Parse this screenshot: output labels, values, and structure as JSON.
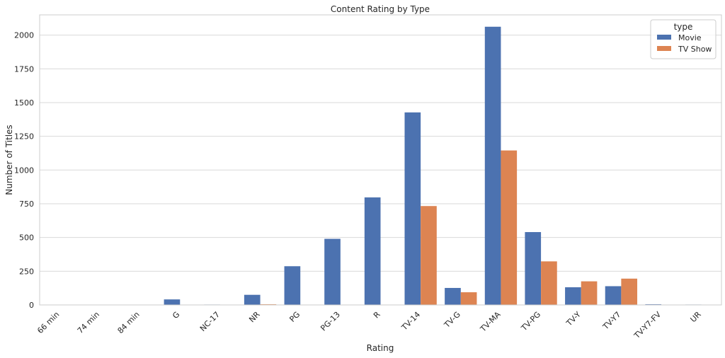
{
  "chart_data": {
    "type": "bar",
    "title": "Content Rating by Type",
    "xlabel": "Rating",
    "ylabel": "Number of Titles",
    "ylim": [
      0,
      2150
    ],
    "yticks": [
      0,
      250,
      500,
      750,
      1000,
      1250,
      1500,
      1750,
      2000
    ],
    "grid": "horizontal",
    "legend": {
      "title": "type",
      "placement": "top-right"
    },
    "categories": [
      "66 min",
      "74 min",
      "84 min",
      "G",
      "NC-17",
      "NR",
      "PG",
      "PG-13",
      "R",
      "TV-14",
      "TV-G",
      "TV-MA",
      "TV-PG",
      "TV-Y",
      "TV-Y7",
      "TV-Y7-FV",
      "UR"
    ],
    "series": [
      {
        "name": "Movie",
        "color": "#4c72b0",
        "values": [
          1,
          1,
          1,
          41,
          3,
          75,
          287,
          490,
          797,
          1427,
          126,
          2062,
          540,
          131,
          139,
          5,
          3
        ]
      },
      {
        "name": "TV Show",
        "color": "#dd8452",
        "values": [
          0,
          0,
          0,
          0,
          0,
          5,
          0,
          0,
          2,
          733,
          94,
          1145,
          323,
          175,
          195,
          1,
          0
        ]
      }
    ]
  }
}
